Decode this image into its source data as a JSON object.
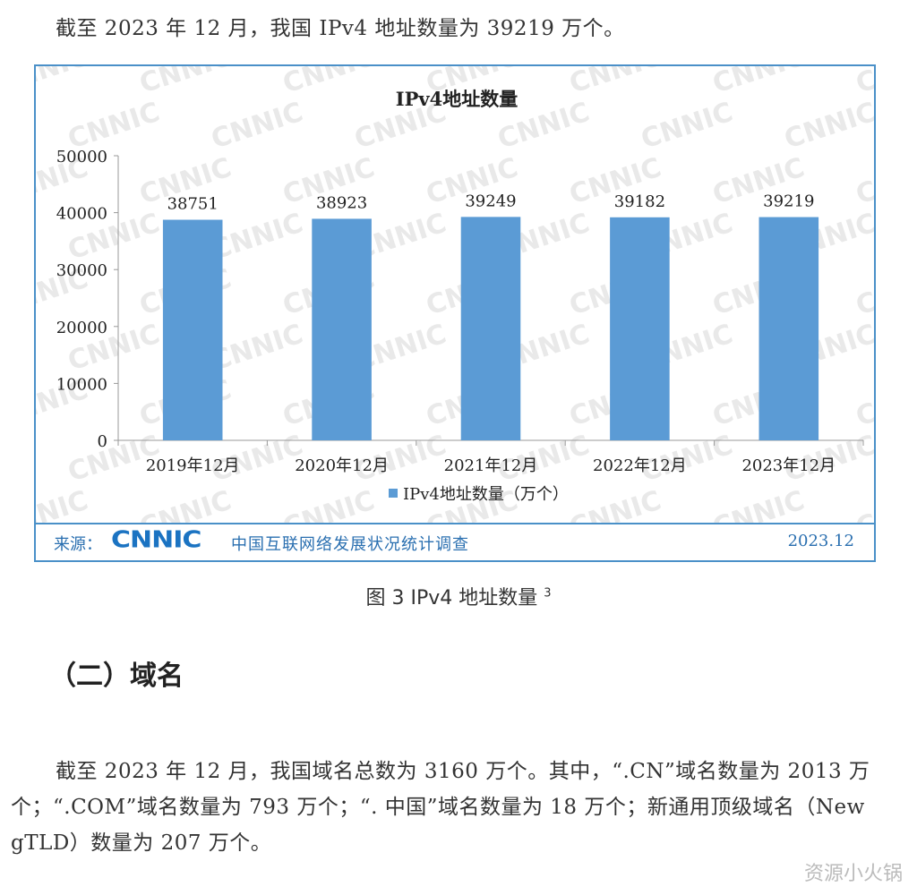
{
  "intro_paragraph": "截至 2023 年 12 月，我国 IPv4 地址数量为 39219 万个。",
  "source_bar": {
    "label": "来源：",
    "logo": "CNNIC",
    "text": "中国互联网络发展状况统计调查",
    "date": "2023.12"
  },
  "watermark_text": "CNNIC",
  "figure_caption": "图 3 IPv4 地址数量",
  "figure_caption_note": "3",
  "section_heading": "（二）域名",
  "domain_paragraph": "截至 2023 年 12 月，我国域名总数为 3160 万个。其中，“.CN”域名数量为 2013 万个；“.COM”域名数量为 793 万个；“. 中国”域名数量为 18 万个；新通用顶级域名（New gTLD）数量为 207 万个。",
  "corner_watermark": "资源小火锅",
  "colors": {
    "bar": "#5b9bd5",
    "frame": "#4a90c8",
    "source_text": "#2a6fb0"
  },
  "chart_data": {
    "type": "bar",
    "title": "IPv4地址数量",
    "categories": [
      "2019年12月",
      "2020年12月",
      "2021年12月",
      "2022年12月",
      "2023年12月"
    ],
    "series": [
      {
        "name": "IPv4地址数量（万个）",
        "values": [
          38751,
          38923,
          39249,
          39182,
          39219
        ]
      }
    ],
    "yticks": [
      0,
      10000,
      20000,
      30000,
      40000,
      50000
    ],
    "ylim": [
      0,
      50000
    ],
    "data_labels": true,
    "legend": "bottom-center",
    "grid": false
  }
}
